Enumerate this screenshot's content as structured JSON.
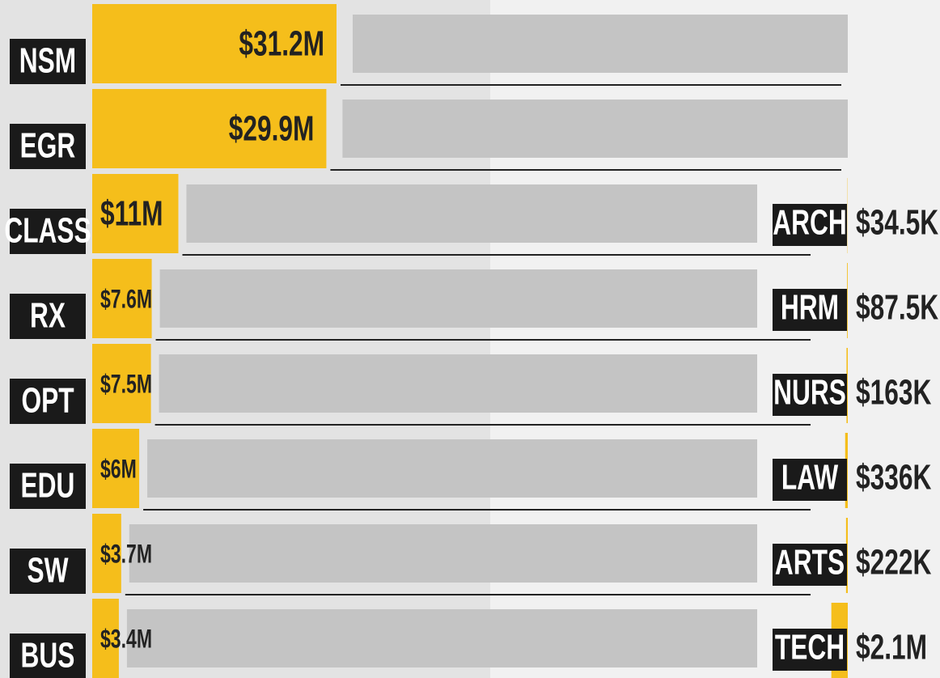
{
  "chart_data": [
    {
      "type": "bar",
      "categories": [
        "NSM",
        "EGR",
        "CLASS",
        "RX",
        "OPT",
        "EDU",
        "SW",
        "BUS"
      ],
      "values": [
        31200000,
        29900000,
        11000000,
        7600000,
        7500000,
        6000000,
        3700000,
        3400000
      ],
      "value_labels": [
        "$31.2M",
        "$29.9M",
        "$11M",
        "$7.6M",
        "$7.5M",
        "$6M",
        "$3.7M",
        "$3.4M"
      ],
      "color": "#f5be1b"
    },
    {
      "type": "bar",
      "categories": [
        "ARCH",
        "HRM",
        "NURS",
        "LAW",
        "ARTS",
        "TECH"
      ],
      "values": [
        34500,
        87500,
        163000,
        336000,
        222000,
        2100000
      ],
      "value_labels": [
        "$34.5K",
        "$87.5K",
        "$163K",
        "$336K",
        "$222K",
        "$2.1M"
      ],
      "color": "#f5be1b"
    }
  ]
}
